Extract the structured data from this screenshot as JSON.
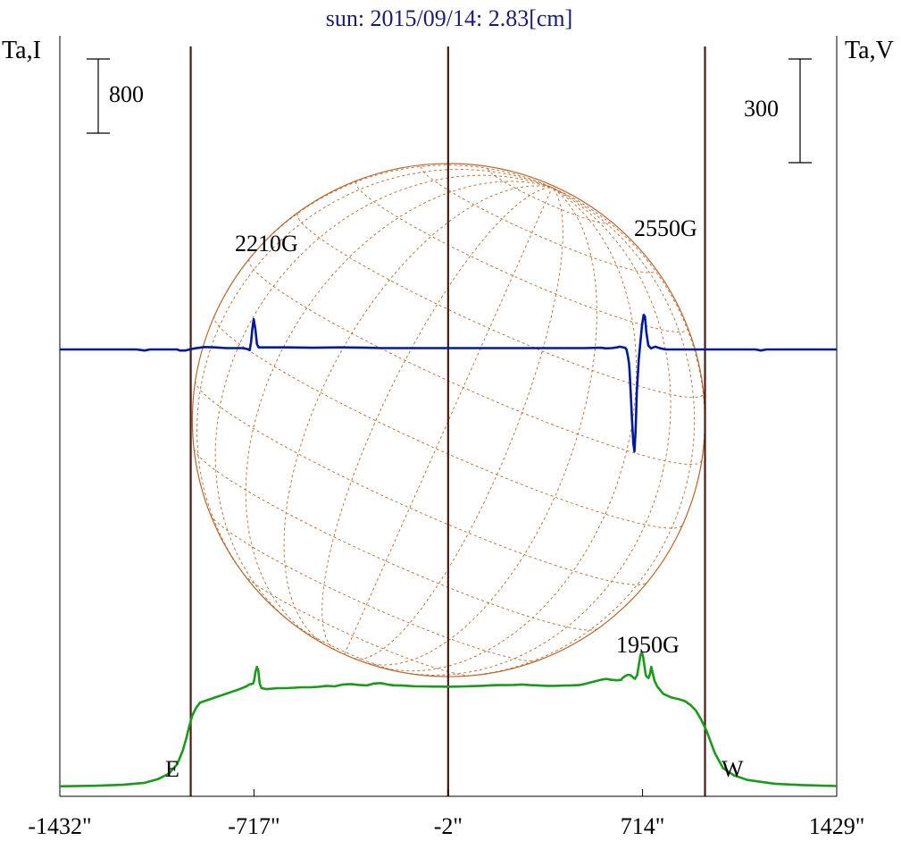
{
  "chart_data": {
    "type": "line",
    "title": "sun: 2015/09/14: 2.83[cm]",
    "ylabel_left": "Ta,I",
    "ylabel_right": "Ta,V",
    "scale_left": "800",
    "scale_right": "300",
    "limb_labels": {
      "east": "E",
      "west": "W"
    },
    "xlim": [
      -1432,
      1429
    ],
    "x_ticks": [
      -1432,
      -717,
      -2,
      714,
      1429
    ],
    "x_tick_labels": [
      "-1432\"",
      "-717\"",
      "-2\"",
      "714\"",
      "1429\""
    ],
    "vertical_markers": [
      -950,
      -2,
      944
    ],
    "annotations": [
      {
        "text": "2210G",
        "x": -720
      },
      {
        "text": "2550G",
        "x": 820
      },
      {
        "text": "1950G",
        "x": 760
      }
    ],
    "series": [
      {
        "name": "I",
        "color": "#1a9a1a",
        "axis": "left",
        "points": [
          [
            -1432,
            2
          ],
          [
            -1300,
            8
          ],
          [
            -1200,
            18
          ],
          [
            -1120,
            40
          ],
          [
            -1070,
            80
          ],
          [
            -1030,
            140
          ],
          [
            -1000,
            240
          ],
          [
            -980,
            380
          ],
          [
            -966,
            520
          ],
          [
            -956,
            640
          ],
          [
            -945,
            760
          ],
          [
            -930,
            850
          ],
          [
            -915,
            905
          ],
          [
            -890,
            930
          ],
          [
            -860,
            960
          ],
          [
            -830,
            990
          ],
          [
            -800,
            1020
          ],
          [
            -770,
            1050
          ],
          [
            -745,
            1080
          ],
          [
            -735,
            1100
          ],
          [
            -720,
            1110
          ],
          [
            -716,
            1150
          ],
          [
            -711,
            1240
          ],
          [
            -706,
            1290
          ],
          [
            -701,
            1250
          ],
          [
            -696,
            1110
          ],
          [
            -689,
            1060
          ],
          [
            -670,
            1050
          ],
          [
            -630,
            1060
          ],
          [
            -600,
            1060
          ],
          [
            -570,
            1065
          ],
          [
            -540,
            1070
          ],
          [
            -510,
            1070
          ],
          [
            -480,
            1075
          ],
          [
            -450,
            1085
          ],
          [
            -420,
            1080
          ],
          [
            -390,
            1100
          ],
          [
            -360,
            1105
          ],
          [
            -330,
            1095
          ],
          [
            -300,
            1090
          ],
          [
            -275,
            1110
          ],
          [
            -250,
            1115
          ],
          [
            -225,
            1100
          ],
          [
            -200,
            1090
          ],
          [
            -175,
            1090
          ],
          [
            -150,
            1085
          ],
          [
            -120,
            1080
          ],
          [
            -90,
            1080
          ],
          [
            -60,
            1078
          ],
          [
            -30,
            1078
          ],
          [
            0,
            1076
          ],
          [
            30,
            1078
          ],
          [
            60,
            1080
          ],
          [
            90,
            1082
          ],
          [
            120,
            1085
          ],
          [
            150,
            1090
          ],
          [
            180,
            1093
          ],
          [
            210,
            1093
          ],
          [
            240,
            1095
          ],
          [
            270,
            1100
          ],
          [
            300,
            1093
          ],
          [
            330,
            1090
          ],
          [
            360,
            1085
          ],
          [
            390,
            1085
          ],
          [
            420,
            1088
          ],
          [
            450,
            1090
          ],
          [
            480,
            1093
          ],
          [
            500,
            1105
          ],
          [
            520,
            1120
          ],
          [
            540,
            1135
          ],
          [
            560,
            1150
          ],
          [
            580,
            1160
          ],
          [
            600,
            1150
          ],
          [
            620,
            1145
          ],
          [
            635,
            1150
          ],
          [
            640,
            1170
          ],
          [
            650,
            1190
          ],
          [
            660,
            1205
          ],
          [
            670,
            1200
          ],
          [
            678,
            1180
          ],
          [
            686,
            1160
          ],
          [
            694,
            1200
          ],
          [
            700,
            1300
          ],
          [
            706,
            1410
          ],
          [
            711,
            1450
          ],
          [
            716,
            1400
          ],
          [
            721,
            1300
          ],
          [
            726,
            1200
          ],
          [
            731,
            1180
          ],
          [
            736,
            1170
          ],
          [
            741,
            1210
          ],
          [
            746,
            1290
          ],
          [
            751,
            1230
          ],
          [
            758,
            1140
          ],
          [
            768,
            1080
          ],
          [
            790,
            1000
          ],
          [
            820,
            960
          ],
          [
            850,
            940
          ],
          [
            870,
            920
          ],
          [
            890,
            880
          ],
          [
            910,
            820
          ],
          [
            930,
            720
          ],
          [
            950,
            600
          ],
          [
            980,
            360
          ],
          [
            1010,
            200
          ],
          [
            1050,
            120
          ],
          [
            1100,
            70
          ],
          [
            1200,
            30
          ],
          [
            1300,
            15
          ],
          [
            1429,
            5
          ]
        ]
      },
      {
        "name": "V",
        "color": "#001a99",
        "axis": "right",
        "points": [
          [
            -1432,
            0
          ],
          [
            -1150,
            0
          ],
          [
            -1120,
            -3
          ],
          [
            -1100,
            0
          ],
          [
            -1000,
            0
          ],
          [
            -990,
            -3
          ],
          [
            -970,
            -3
          ],
          [
            -955,
            0
          ],
          [
            -935,
            3
          ],
          [
            -900,
            7
          ],
          [
            -860,
            6
          ],
          [
            -820,
            4
          ],
          [
            -760,
            4
          ],
          [
            -740,
            1
          ],
          [
            -733,
            -2
          ],
          [
            -728,
            20
          ],
          [
            -723,
            60
          ],
          [
            -718,
            88
          ],
          [
            -712,
            60
          ],
          [
            -706,
            15
          ],
          [
            -700,
            6
          ],
          [
            -600,
            6
          ],
          [
            -500,
            5
          ],
          [
            -400,
            6
          ],
          [
            -300,
            5
          ],
          [
            -250,
            4
          ],
          [
            -200,
            4
          ],
          [
            -100,
            4
          ],
          [
            0,
            4
          ],
          [
            100,
            4
          ],
          [
            200,
            4
          ],
          [
            300,
            4
          ],
          [
            400,
            4
          ],
          [
            500,
            4
          ],
          [
            560,
            5
          ],
          [
            580,
            3
          ],
          [
            600,
            4
          ],
          [
            620,
            6
          ],
          [
            630,
            8
          ],
          [
            650,
            5
          ],
          [
            655,
            0
          ],
          [
            660,
            -20
          ],
          [
            664,
            -40
          ],
          [
            666,
            -60
          ],
          [
            670,
            -120
          ],
          [
            675,
            -200
          ],
          [
            680,
            -270
          ],
          [
            684,
            -295
          ],
          [
            688,
            -240
          ],
          [
            693,
            -120
          ],
          [
            700,
            -30
          ],
          [
            706,
            20
          ],
          [
            712,
            70
          ],
          [
            718,
            100
          ],
          [
            723,
            95
          ],
          [
            728,
            50
          ],
          [
            735,
            12
          ],
          [
            745,
            3
          ],
          [
            760,
            8
          ],
          [
            780,
            3
          ],
          [
            800,
            0
          ],
          [
            900,
            0
          ],
          [
            1050,
            0
          ],
          [
            1130,
            0
          ],
          [
            1150,
            -3
          ],
          [
            1170,
            0
          ],
          [
            1429,
            0
          ]
        ]
      }
    ],
    "disk_grid": {
      "radius_arcsec": 944,
      "p_angle_deg": 24,
      "b0_deg": 7,
      "color": "#b8682e"
    }
  }
}
